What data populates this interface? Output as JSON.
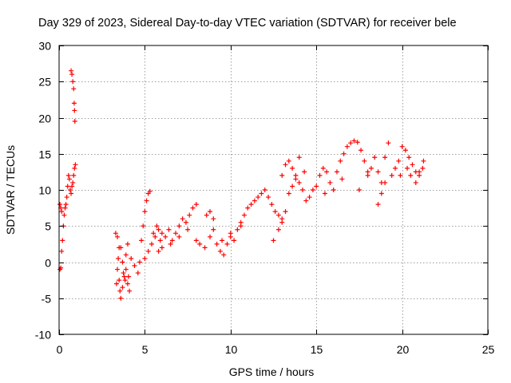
{
  "chart_data": {
    "type": "scatter",
    "title": "Day 329 of 2023, Sidereal Day-to-day VTEC variation (SDTVAR) for receiver bele",
    "xlabel": "GPS time / hours",
    "ylabel": "SDTVAR / TECUs",
    "xlim": [
      0,
      25
    ],
    "ylim": [
      -10,
      30
    ],
    "x_ticks": [
      0,
      5,
      10,
      15,
      20,
      25
    ],
    "x_tick_labels": [
      "0",
      "5",
      "10",
      "15",
      "20",
      "25"
    ],
    "y_ticks": [
      -10,
      -5,
      0,
      5,
      10,
      15,
      20,
      25,
      30
    ],
    "y_tick_labels": [
      "-10",
      "-5",
      "0",
      "5",
      "10",
      "15",
      "20",
      "25",
      "30"
    ],
    "grid": true,
    "marker": "+",
    "series_color": "#ff0000",
    "series": [
      {
        "name": "SDTVAR",
        "points": [
          [
            0.05,
            -1.0
          ],
          [
            0.1,
            -0.8
          ],
          [
            0.15,
            1.5
          ],
          [
            0.2,
            3.0
          ],
          [
            0.25,
            5.0
          ],
          [
            0.3,
            6.5
          ],
          [
            0.35,
            7.5
          ],
          [
            0.4,
            8.0
          ],
          [
            0.45,
            9.0
          ],
          [
            0.5,
            10.5
          ],
          [
            0.55,
            12.0
          ],
          [
            0.6,
            11.5
          ],
          [
            0.65,
            10.0
          ],
          [
            0.7,
            9.5
          ],
          [
            0.75,
            10.5
          ],
          [
            0.8,
            11.0
          ],
          [
            0.85,
            12.0
          ],
          [
            0.9,
            13.0
          ],
          [
            0.95,
            13.5
          ],
          [
            0.05,
            8.0
          ],
          [
            0.1,
            7.5
          ],
          [
            0.15,
            7.0
          ],
          [
            0.7,
            26.5
          ],
          [
            0.75,
            26.0
          ],
          [
            0.8,
            25.0
          ],
          [
            0.85,
            24.0
          ],
          [
            0.88,
            22.0
          ],
          [
            0.9,
            21.0
          ],
          [
            0.92,
            19.5
          ],
          [
            3.3,
            4.0
          ],
          [
            3.4,
            3.5
          ],
          [
            3.5,
            2.0
          ],
          [
            3.45,
            0.5
          ],
          [
            3.4,
            -1.0
          ],
          [
            3.5,
            -2.5
          ],
          [
            3.55,
            -4.0
          ],
          [
            3.6,
            -5.0
          ],
          [
            3.7,
            -3.5
          ],
          [
            3.8,
            -2.0
          ],
          [
            3.9,
            -1.0
          ],
          [
            4.0,
            -3.0
          ],
          [
            4.1,
            -4.0
          ],
          [
            3.9,
            1.0
          ],
          [
            4.0,
            2.5
          ],
          [
            3.6,
            2.0
          ],
          [
            3.7,
            0.0
          ],
          [
            3.75,
            -1.5
          ],
          [
            3.85,
            -2.5
          ],
          [
            4.05,
            -2.0
          ],
          [
            3.35,
            -3.0
          ],
          [
            4.2,
            0.5
          ],
          [
            4.4,
            -0.5
          ],
          [
            4.6,
            -1.5
          ],
          [
            4.7,
            0.0
          ],
          [
            4.8,
            3.0
          ],
          [
            4.9,
            5.0
          ],
          [
            5.0,
            7.0
          ],
          [
            5.1,
            8.5
          ],
          [
            5.2,
            9.5
          ],
          [
            5.3,
            9.8
          ],
          [
            5.0,
            0.5
          ],
          [
            5.2,
            1.5
          ],
          [
            5.4,
            2.5
          ],
          [
            5.5,
            4.0
          ],
          [
            5.6,
            3.5
          ],
          [
            5.7,
            5.0
          ],
          [
            5.8,
            4.5
          ],
          [
            5.9,
            3.0
          ],
          [
            6.0,
            4.0
          ],
          [
            6.2,
            3.5
          ],
          [
            6.4,
            4.5
          ],
          [
            6.6,
            3.0
          ],
          [
            6.8,
            4.0
          ],
          [
            7.0,
            5.0
          ],
          [
            7.2,
            6.0
          ],
          [
            7.4,
            5.5
          ],
          [
            7.6,
            6.5
          ],
          [
            7.8,
            7.5
          ],
          [
            8.0,
            8.0
          ],
          [
            6.5,
            2.5
          ],
          [
            7.5,
            4.5
          ],
          [
            7.0,
            3.5
          ],
          [
            6.0,
            2.0
          ],
          [
            5.8,
            1.5
          ],
          [
            8.0,
            3.0
          ],
          [
            8.2,
            2.5
          ],
          [
            8.5,
            2.0
          ],
          [
            8.8,
            3.5
          ],
          [
            9.0,
            4.5
          ],
          [
            9.2,
            2.5
          ],
          [
            9.4,
            1.5
          ],
          [
            9.6,
            1.0
          ],
          [
            9.8,
            2.5
          ],
          [
            10.0,
            3.5
          ],
          [
            10.2,
            3.0
          ],
          [
            10.4,
            4.5
          ],
          [
            10.6,
            5.0
          ],
          [
            8.6,
            6.5
          ],
          [
            8.8,
            7.0
          ],
          [
            9.0,
            6.0
          ],
          [
            9.5,
            3.0
          ],
          [
            10.0,
            4.0
          ],
          [
            10.6,
            5.5
          ],
          [
            10.8,
            6.5
          ],
          [
            11.0,
            7.5
          ],
          [
            11.2,
            8.0
          ],
          [
            11.4,
            8.5
          ],
          [
            11.6,
            9.0
          ],
          [
            11.8,
            9.5
          ],
          [
            12.0,
            10.0
          ],
          [
            12.2,
            9.0
          ],
          [
            12.4,
            8.0
          ],
          [
            12.6,
            7.0
          ],
          [
            12.8,
            6.5
          ],
          [
            13.0,
            5.5
          ],
          [
            13.2,
            7.0
          ],
          [
            12.5,
            3.0
          ],
          [
            12.8,
            4.5
          ],
          [
            13.0,
            6.0
          ],
          [
            13.0,
            12.0
          ],
          [
            13.2,
            13.5
          ],
          [
            13.4,
            14.0
          ],
          [
            13.6,
            13.0
          ],
          [
            13.8,
            12.0
          ],
          [
            14.0,
            11.0
          ],
          [
            14.2,
            10.0
          ],
          [
            14.4,
            8.5
          ],
          [
            14.0,
            14.5
          ],
          [
            13.4,
            9.5
          ],
          [
            13.6,
            10.5
          ],
          [
            13.8,
            11.5
          ],
          [
            14.3,
            12.5
          ],
          [
            14.6,
            9.0
          ],
          [
            14.8,
            10.0
          ],
          [
            15.0,
            10.5
          ],
          [
            15.2,
            12.0
          ],
          [
            15.4,
            13.0
          ],
          [
            15.6,
            12.5
          ],
          [
            15.8,
            11.0
          ],
          [
            16.0,
            10.0
          ],
          [
            16.2,
            12.5
          ],
          [
            16.4,
            14.0
          ],
          [
            16.6,
            15.0
          ],
          [
            16.8,
            16.0
          ],
          [
            17.0,
            16.5
          ],
          [
            17.2,
            16.8
          ],
          [
            17.4,
            16.6
          ],
          [
            17.6,
            15.5
          ],
          [
            17.8,
            14.0
          ],
          [
            18.0,
            12.0
          ],
          [
            17.5,
            10.0
          ],
          [
            16.5,
            11.5
          ],
          [
            15.5,
            9.5
          ],
          [
            18.0,
            12.5
          ],
          [
            18.2,
            13.0
          ],
          [
            18.4,
            14.5
          ],
          [
            18.6,
            12.5
          ],
          [
            18.8,
            11.0
          ],
          [
            19.0,
            14.5
          ],
          [
            19.2,
            16.5
          ],
          [
            18.6,
            8.0
          ],
          [
            18.8,
            9.5
          ],
          [
            19.0,
            11.0
          ],
          [
            19.4,
            12.0
          ],
          [
            19.6,
            13.0
          ],
          [
            19.8,
            14.0
          ],
          [
            19.9,
            12.0
          ],
          [
            20.0,
            16.0
          ],
          [
            20.2,
            15.5
          ],
          [
            20.4,
            14.5
          ],
          [
            20.6,
            13.5
          ],
          [
            20.8,
            12.5
          ],
          [
            21.0,
            12.0
          ],
          [
            21.2,
            13.0
          ],
          [
            21.25,
            14.0
          ],
          [
            20.8,
            11.0
          ],
          [
            21.0,
            12.5
          ],
          [
            20.5,
            12.0
          ],
          [
            20.3,
            13.0
          ]
        ]
      }
    ]
  }
}
